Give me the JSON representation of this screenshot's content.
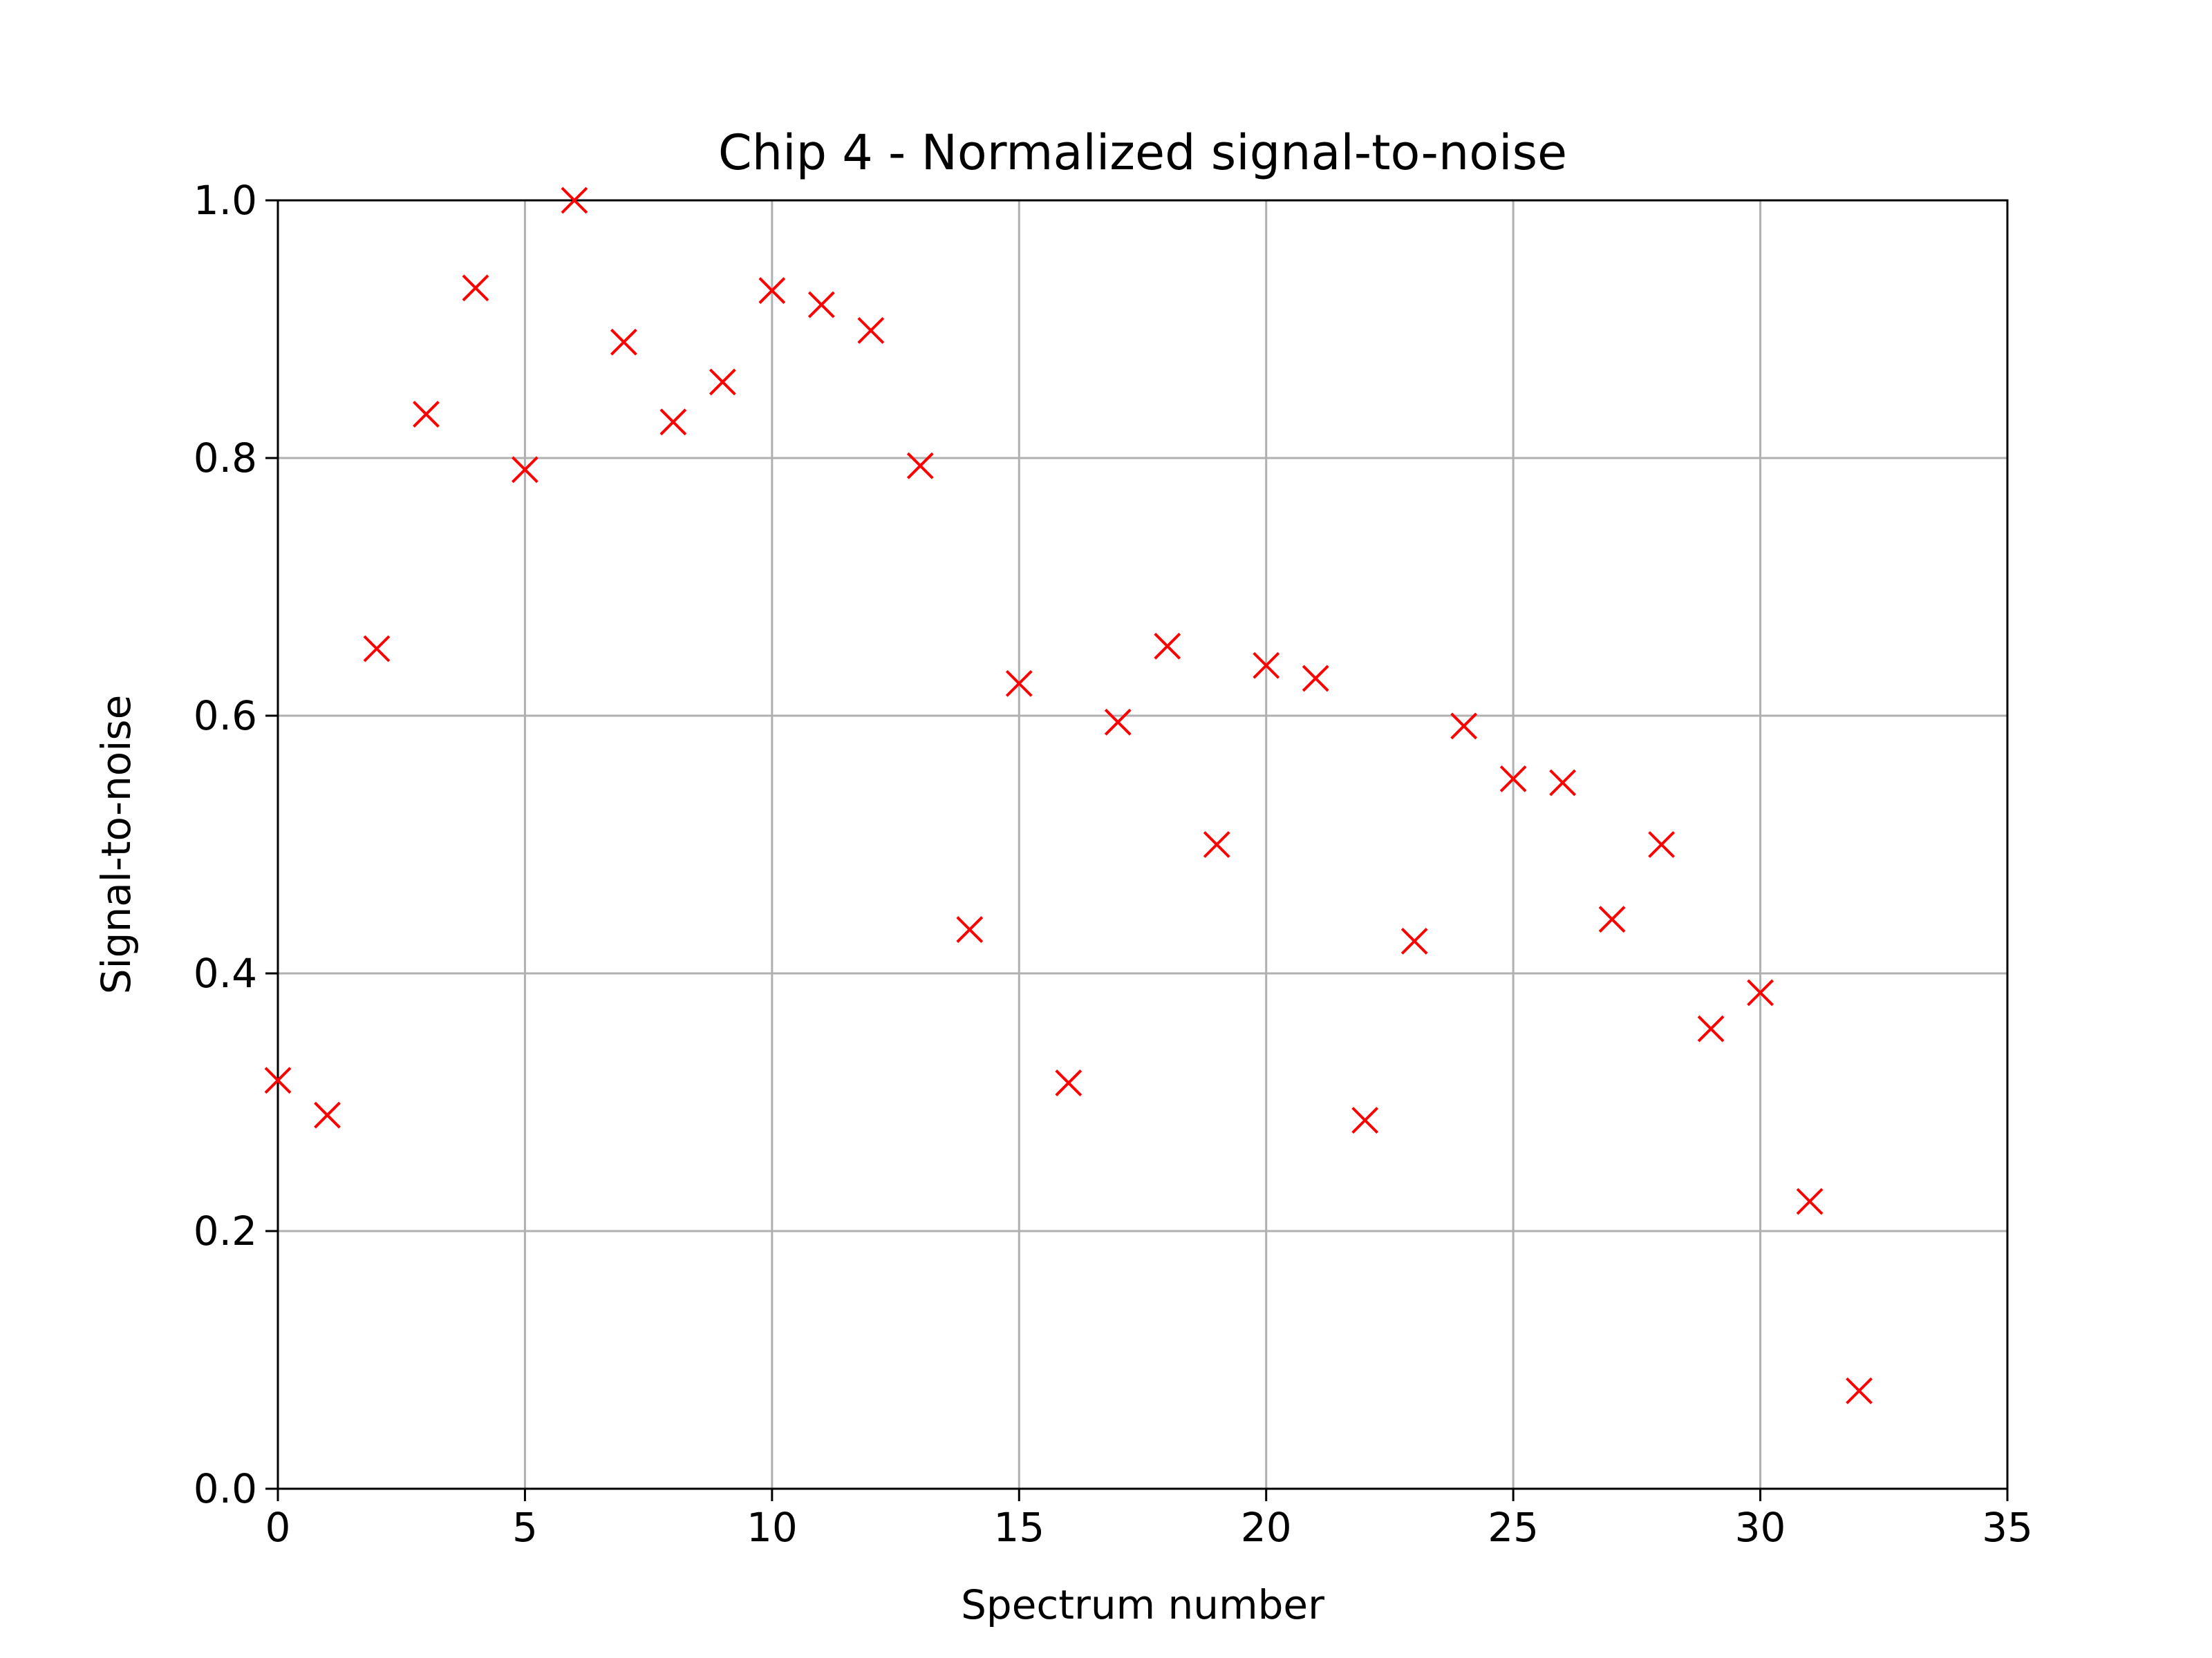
{
  "chart_data": {
    "type": "scatter",
    "title": "Chip 4 - Normalized signal-to-noise",
    "xlabel": "Spectrum number",
    "ylabel": "Signal-to-noise",
    "xlim": [
      0,
      35
    ],
    "ylim": [
      0.0,
      1.0
    ],
    "xticks": [
      0,
      5,
      10,
      15,
      20,
      25,
      30,
      35
    ],
    "xtick_labels": [
      "0",
      "5",
      "10",
      "15",
      "20",
      "25",
      "30",
      "35"
    ],
    "yticks": [
      0.0,
      0.2,
      0.4,
      0.6,
      0.8,
      1.0
    ],
    "ytick_labels": [
      "0.0",
      "0.2",
      "0.4",
      "0.6",
      "0.8",
      "1.0"
    ],
    "grid": true,
    "marker": "x",
    "marker_color": "#ff0000",
    "series": [
      {
        "x": [
          0,
          1,
          2,
          3,
          4,
          5,
          6,
          7,
          8,
          9,
          10,
          11,
          12,
          13,
          14,
          15,
          16,
          17,
          18,
          19,
          20,
          21,
          22,
          23,
          24,
          25,
          26,
          27,
          28,
          29,
          30,
          31,
          32
        ],
        "y": [
          0.317,
          0.29,
          0.652,
          0.834,
          0.932,
          0.791,
          1.0,
          0.89,
          0.828,
          0.859,
          0.93,
          0.919,
          0.899,
          0.794,
          0.434,
          0.625,
          0.315,
          0.595,
          0.654,
          0.5,
          0.639,
          0.629,
          0.286,
          0.425,
          0.592,
          0.551,
          0.548,
          0.442,
          0.5,
          0.357,
          0.385,
          0.223,
          0.076
        ]
      }
    ]
  },
  "colors": {
    "axes": "#000000",
    "grid": "#b0b0b0",
    "marker": "#ff0000"
  }
}
